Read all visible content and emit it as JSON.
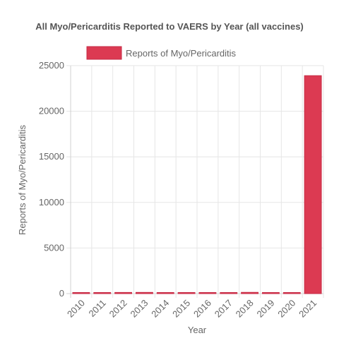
{
  "chart_data": {
    "type": "bar",
    "title": "All Myo/Pericarditis Reported to VAERS by Year (all vaccines)",
    "legend": {
      "label": "Reports of Myo/Pericarditis",
      "position": "top"
    },
    "categories": [
      "2010",
      "2011",
      "2012",
      "2013",
      "2014",
      "2015",
      "2016",
      "2017",
      "2018",
      "2019",
      "2020",
      "2021"
    ],
    "series": [
      {
        "name": "Reports of Myo/Pericarditis",
        "values": [
          95,
          100,
          125,
          130,
          95,
          60,
          70,
          95,
          135,
          100,
          105,
          23900
        ]
      }
    ],
    "xlabel": "Year",
    "ylabel": "Reports of Myo/Pericarditis",
    "ylim": [
      0,
      25000
    ],
    "yticks": [
      "0",
      "5000",
      "10000",
      "15000",
      "20000",
      "25000"
    ],
    "grid": true,
    "colors": {
      "bar": "#dc3a52",
      "bar_border": "#c62a44"
    }
  }
}
